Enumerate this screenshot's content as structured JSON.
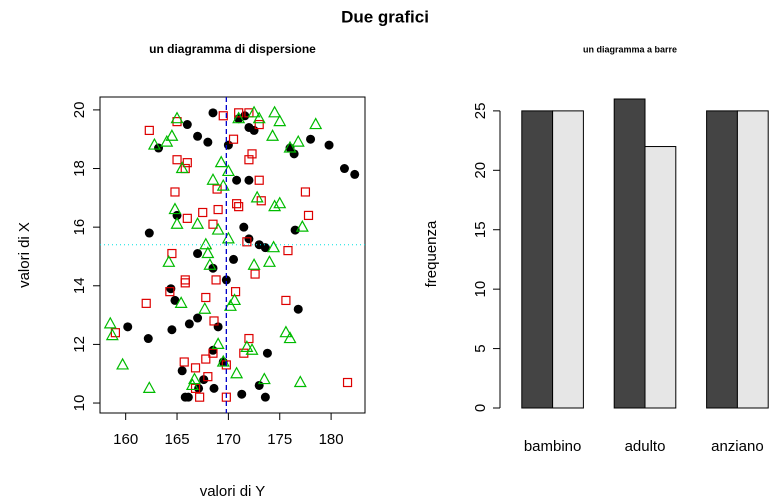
{
  "title": "Due grafici",
  "chart_data": [
    {
      "type": "scatter",
      "title": "un diagramma di dispersione",
      "xlabel": "valori di Y",
      "ylabel": "valori di X",
      "xlim": [
        157.5,
        183.3
      ],
      "ylim": [
        9.66,
        20.44
      ],
      "xticks": [
        160,
        165,
        170,
        175,
        180
      ],
      "yticks": [
        10,
        12,
        14,
        16,
        18,
        20
      ],
      "vline": {
        "value": 169.8,
        "color": "#0000cc"
      },
      "hline": {
        "value": 15.4,
        "color": "#00e0e0"
      },
      "series": [
        {
          "color": "#000000",
          "marker": "circle",
          "x": [
            168.5,
            166,
            167,
            168,
            163.2,
            170,
            171,
            171.6,
            172,
            172.5,
            176,
            176.4,
            178,
            179.8,
            181.3,
            182.3,
            170.8,
            172,
            165,
            162.3,
            171.5,
            172,
            173,
            173.6,
            176.5,
            167,
            170.5,
            168.5,
            169.8,
            164.4,
            164.8,
            176.8,
            166.2,
            167,
            164.5,
            160.2,
            162.2,
            169,
            168.5,
            169.5,
            173.8,
            165.5,
            167.1,
            168.6,
            171.3,
            173,
            173.6,
            165.8,
            166.1,
            167.6
          ],
          "y": [
            19.9,
            19.5,
            19.1,
            18.9,
            18.7,
            18.8,
            19.7,
            19.8,
            19.4,
            19.3,
            18.7,
            18.5,
            19,
            18.8,
            18,
            17.8,
            17.6,
            17.6,
            16.4,
            15.8,
            16,
            15.6,
            15.4,
            15.3,
            15.9,
            15.1,
            14.9,
            14.6,
            14.2,
            13.9,
            13.5,
            13.2,
            12.7,
            12.9,
            12.5,
            12.6,
            12.2,
            12.6,
            11.8,
            11.4,
            11.7,
            11.1,
            10.5,
            10.5,
            10.3,
            10.6,
            10.2,
            10.2,
            10.2,
            10.8
          ]
        },
        {
          "color": "#dd0000",
          "marker": "square",
          "x": [
            162.3,
            165,
            169.5,
            171,
            172,
            173,
            165,
            165.8,
            166,
            170.5,
            172.3,
            172,
            173,
            168.9,
            170.8,
            171,
            173.2,
            177.5,
            177.8,
            164.8,
            167.5,
            169,
            168.5,
            166,
            171.8,
            175.8,
            164.5,
            165.8,
            165.8,
            168.8,
            170.7,
            172.6,
            164.3,
            162,
            167.8,
            175.6,
            168.6,
            172,
            159,
            165.7,
            166.8,
            167.8,
            168.5,
            169.8,
            168,
            166.8,
            167.2,
            169.8,
            181.6,
            171.5
          ],
          "y": [
            19.3,
            19.6,
            19.8,
            19.9,
            19.9,
            19.5,
            18.3,
            18,
            18.2,
            19,
            18.5,
            18.3,
            17.6,
            17.3,
            16.8,
            16.7,
            16.9,
            17.2,
            16.4,
            17.2,
            16.5,
            16.6,
            16.1,
            16.3,
            15.5,
            15.2,
            15.1,
            14.2,
            14.1,
            14.2,
            13.8,
            14.4,
            13.8,
            13.4,
            13.6,
            13.5,
            12.8,
            12.2,
            12.4,
            11.4,
            11.2,
            11.5,
            11.7,
            11.3,
            10.9,
            10.5,
            10.2,
            10.2,
            10.7,
            11.7
          ]
        },
        {
          "color": "#00bb00",
          "marker": "triangle",
          "x": [
            165,
            171,
            173,
            174.5,
            175,
            178.5,
            172.5,
            162.8,
            164,
            164.5,
            174.3,
            176,
            176.8,
            165.5,
            168.5,
            169.3,
            170,
            169.5,
            172.8,
            174.5,
            164.8,
            165,
            167,
            169,
            170,
            175,
            177.2,
            167.8,
            168,
            168.2,
            174.4,
            174,
            172.5,
            164.2,
            165.4,
            167.7,
            170.2,
            170.6,
            158.5,
            158.7,
            159.7,
            175.6,
            176,
            171.8,
            172.3,
            169,
            169.5,
            170.8,
            166.7,
            162.3,
            166.5,
            173.5,
            177
          ],
          "y": [
            19.7,
            19.7,
            19.7,
            19.9,
            19.6,
            19.5,
            19.9,
            18.8,
            18.9,
            19.1,
            19.1,
            18.7,
            18.9,
            18,
            17.6,
            18.2,
            17.9,
            17.4,
            17,
            16.7,
            16.6,
            16.1,
            16.1,
            15.9,
            15.6,
            16.8,
            16,
            15.4,
            15.1,
            14.7,
            15.3,
            14.8,
            14.7,
            14.8,
            13.4,
            13.2,
            13.3,
            13.5,
            12.7,
            12.3,
            11.3,
            12.4,
            12.2,
            11.9,
            11.8,
            12,
            11.4,
            11,
            10.8,
            10.5,
            10.6,
            10.8,
            10.7
          ]
        }
      ]
    },
    {
      "type": "bar",
      "title": "un diagramma a barre",
      "ylabel": "frequenza",
      "categories": [
        "bambino",
        "adulto",
        "anziano"
      ],
      "ylim": [
        0,
        26
      ],
      "yticks": [
        0,
        5,
        10,
        15,
        20,
        25
      ],
      "series": [
        {
          "color": "#444444",
          "values": [
            25,
            26,
            25
          ]
        },
        {
          "color": "#e6e6e6",
          "values": [
            25,
            22,
            25
          ]
        }
      ]
    }
  ]
}
